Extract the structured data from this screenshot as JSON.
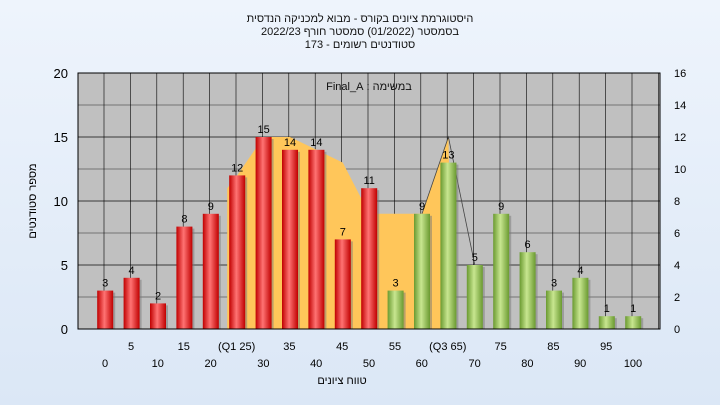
{
  "chart_data": {
    "type": "bar",
    "title_lines": [
      "היסטוגרמת ציונים בקורס - מבוא למכניקה הנדסית",
      "בסמסטר  (01/2022)  סמסטר חורף 2022/23",
      "סטודנטים רשומים - 173"
    ],
    "annotation": "במשימה : Final_A",
    "xlabel": "טווח ציונים",
    "ylabel": "מספר סטודנטים",
    "ylim": [
      0,
      20
    ],
    "y2lim": [
      0,
      16
    ],
    "y_ticks": [
      0,
      5,
      10,
      15,
      20
    ],
    "y2_ticks": [
      0,
      2,
      4,
      6,
      8,
      10,
      12,
      14,
      16
    ],
    "x_tick_labels_row1": [
      "5",
      "15",
      "(Q1 25)",
      "35",
      "45",
      "55",
      "(Q3 65)",
      "75",
      "85",
      "95"
    ],
    "x_tick_labels_row2": [
      "0",
      "10",
      "20",
      "30",
      "40",
      "50",
      "60",
      "70",
      "80",
      "90",
      "100"
    ],
    "values": [
      3,
      4,
      2,
      8,
      9,
      12,
      15,
      14,
      14,
      7,
      11,
      3,
      9,
      13,
      5,
      9,
      6,
      3,
      4,
      1,
      1
    ],
    "bar_colors": [
      "red",
      "red",
      "red",
      "red",
      "red",
      "red",
      "red",
      "red",
      "red",
      "red",
      "red",
      "green",
      "green",
      "green",
      "green",
      "green",
      "green",
      "green",
      "green",
      "green",
      "green"
    ],
    "distribution_values": [
      3,
      4,
      2,
      8,
      9,
      12,
      15,
      15,
      14,
      13,
      9,
      9,
      9,
      15,
      5,
      9,
      6,
      3,
      4,
      1,
      1
    ],
    "colors": {
      "red_light": "#ff7373",
      "red_dark": "#c00000",
      "green_light": "#c8e690",
      "green_dark": "#6a9a30",
      "area": "#ffc65a",
      "plot_bg": "#c0c0c0",
      "grid": "#000000"
    }
  }
}
